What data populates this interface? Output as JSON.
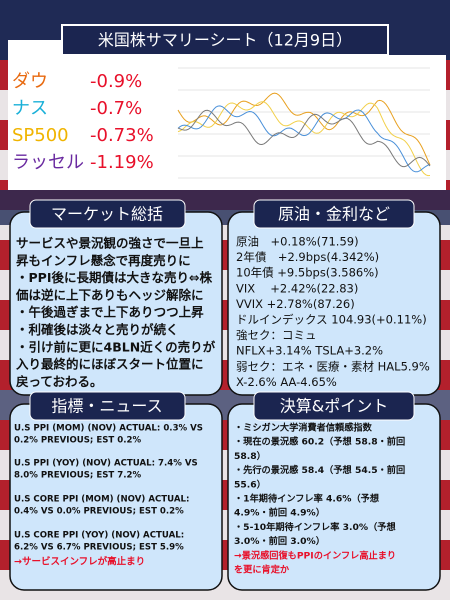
{
  "header": {
    "title": "米国株サマリーシート（12月9日）"
  },
  "indices": [
    {
      "name": "ダウ",
      "change": "-0.9%"
    },
    {
      "name": "ナス",
      "change": "-0.7%"
    },
    {
      "name": "SP500",
      "change": "-0.73%"
    },
    {
      "name": "ラッセル",
      "change": "-1.19%"
    }
  ],
  "market": {
    "title": "マーケット総括",
    "lines": [
      "サービスや景況観の強さで一旦上",
      "昇もインフレ懸念で再度売りに",
      "・PPI後に長期債は大きな売り⇔株",
      "価は逆に上下ありもヘッジ解除に",
      "・午後過ぎまで上下ありつつ上昇",
      "・利確後は淡々と売りが続く",
      "・引け前に更に4BLN近くの売りが",
      "入り最終的にほぼスタート位置に",
      "戻っておわる。"
    ]
  },
  "rates": {
    "title": "原油・金利など",
    "lines": [
      "原油　+0.18%(71.59)",
      "2年債　+2.9bps(4.342%)",
      "10年債 +9.5bps(3.586%)",
      "VIX　 +2.42%(22.83)",
      "VVIX  +2.78%(87.26)",
      "ドルインデックス 104.93(+0.11%)",
      "強セク：コミュ",
      "NFLX+3.14% TSLA+3.2%",
      "弱セク：エネ・医療・素材 HAL5.9%",
      "X-2.6% AA-4.65%"
    ]
  },
  "news": {
    "title": "指標・ニュース",
    "items": [
      [
        "U.S PPI (MOM) (NOV) ACTUAL:  0.3% VS",
        "0.2% PREVIOUS; EST 0.2%"
      ],
      [
        "U.S PPI (YOY) (NOV) ACTUAL: 7.4% VS",
        "8.0% PREVIOUS; EST 7.2%"
      ],
      [
        "U.S CORE PPI (MOM) (NOV) ACTUAL:",
        "0.4% VS 0.0% PREVIOUS; EST 0.2%"
      ],
      [
        "U.S CORE PPI (YOY) (NOV) ACTUAL:",
        "6.2% VS 6.7% PREVIOUS; EST 5.9%"
      ]
    ],
    "conclusion": "→サービスインフレが高止まり"
  },
  "earnings": {
    "title": "決算&ポイント",
    "lines": [
      "・ミシガン大学消費者信頼感指数",
      "・現在の景況感  60.2（予想  58.8・前回",
      "58.8）",
      "・先行の景況感  58.4（予想  54.5・前回",
      "55.6）",
      "・1年期待インフレ率  4.6%（予想",
      "4.9%・前回  4.9%）",
      "・5-10年期待インフレ率  3.0%（予想",
      "3.0%・前回  3.0%）"
    ],
    "conclusion": [
      "→景況感回復もPPIのインフレ高止まり",
      "を更に肯定か"
    ]
  }
}
